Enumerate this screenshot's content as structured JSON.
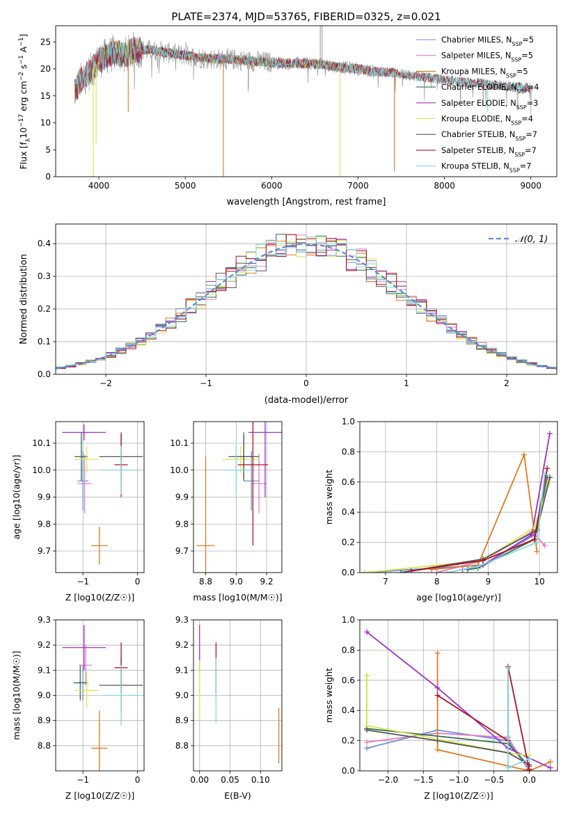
{
  "figure_title": "PLATE=2374, MJD=53765, FIBERID=0325, z=0.021",
  "colors": {
    "chabrier_miles": "#6a8fdc",
    "salpeter_miles": "#e57cc4",
    "kroupa_miles": "#b8860b",
    "chabrier_elodie": "#2f6f4f",
    "salpeter_elodie": "#9b30c8",
    "kroupa_elodie": "#d7e94a",
    "chabrier_stelib": "#555555",
    "salpeter_stelib": "#b01020",
    "kroupa_stelib": "#7fd8e0",
    "orange": "#e07a20",
    "grey_data": "#9a9a9a"
  },
  "chart_data": [
    {
      "type": "line",
      "panel": "spectrum",
      "xlabel": "wavelength [Angstrom, rest frame]",
      "ylabel": "Flux [f_λ 10^-17 erg cm^-2 s^-1 A^-1]",
      "xlim": [
        3500,
        9300
      ],
      "ylim": [
        0,
        28
      ],
      "xticks": [
        "4000",
        "5000",
        "6000",
        "7000",
        "8000",
        "9000"
      ],
      "yticks": [
        "0",
        "5",
        "10",
        "15",
        "20",
        "25"
      ],
      "legend_position": "top-right",
      "legend": [
        {
          "base": "Chabrier MILES, N",
          "sub": "SSP",
          "tail": "=5",
          "color_key": "chabrier_miles"
        },
        {
          "base": "Salpeter MILES, N",
          "sub": "SSP",
          "tail": "=5",
          "color_key": "salpeter_miles"
        },
        {
          "base": "Kroupa MILES, N",
          "sub": "SSP",
          "tail": "=5",
          "color_key": "kroupa_miles"
        },
        {
          "base": "Chabrier ELODIE, N",
          "sub": "SSP",
          "tail": "=4",
          "color_key": "chabrier_elodie"
        },
        {
          "base": "Salpeter ELODIE, N",
          "sub": "SSP",
          "tail": "=3",
          "color_key": "salpeter_elodie"
        },
        {
          "base": "Kroupa ELODIE, N",
          "sub": "SSP",
          "tail": "=4",
          "color_key": "kroupa_elodie"
        },
        {
          "base": "Chabrier STELIB, N",
          "sub": "SSP",
          "tail": "=7",
          "color_key": "chabrier_stelib"
        },
        {
          "base": "Salpeter STELIB, N",
          "sub": "SSP",
          "tail": "=7",
          "color_key": "salpeter_stelib"
        },
        {
          "base": "Kroupa STELIB, N",
          "sub": "SSP",
          "tail": "=7",
          "color_key": "kroupa_stelib"
        }
      ],
      "continuum": [
        [
          3720,
          16
        ],
        [
          3800,
          18
        ],
        [
          3900,
          19.5
        ],
        [
          4000,
          21.5
        ],
        [
          4100,
          22.5
        ],
        [
          4200,
          23
        ],
        [
          4300,
          22.5
        ],
        [
          4400,
          23.5
        ],
        [
          4600,
          23.5
        ],
        [
          4800,
          23
        ],
        [
          5000,
          22.5
        ],
        [
          5200,
          22
        ],
        [
          5400,
          21.8
        ],
        [
          5600,
          21.7
        ],
        [
          5800,
          21.4
        ],
        [
          6000,
          21.2
        ],
        [
          6200,
          21
        ],
        [
          6400,
          21
        ],
        [
          6600,
          20.8
        ],
        [
          6800,
          20.3
        ],
        [
          7000,
          20
        ],
        [
          7200,
          19.5
        ],
        [
          7400,
          19.3
        ],
        [
          7600,
          18.8
        ],
        [
          7800,
          18.4
        ],
        [
          8000,
          18
        ],
        [
          8200,
          17.6
        ],
        [
          8400,
          17.3
        ],
        [
          8600,
          17
        ],
        [
          8800,
          16.6
        ],
        [
          9020,
          16.5
        ]
      ]
    },
    {
      "type": "step",
      "panel": "residuals",
      "xlabel": "(data-model)/error",
      "ylabel": "Normed distribution",
      "xlim": [
        -2.5,
        2.5
      ],
      "ylim": [
        0,
        0.46
      ],
      "xticks": [
        -2,
        -1,
        0,
        1,
        2
      ],
      "xtick_labels": [
        "−2",
        "−1",
        "0",
        "1",
        "2"
      ],
      "yticks": [
        0,
        0.1,
        0.2,
        0.3,
        0.4
      ],
      "ytick_labels": [
        "0.0",
        "0.1",
        "0.2",
        "0.3",
        "0.4"
      ],
      "legend_label": "𝒩(0, 1)",
      "legend_position": "top-right",
      "bin_width": 0.1
    },
    {
      "type": "scatter-errorbar",
      "panel": "age-vs-Z",
      "xlabel": "Z [log10(Z/Z☉)]",
      "ylabel": "age [log10(age/yr)]",
      "xlim": [
        -1.5,
        0.12
      ],
      "ylim": [
        9.62,
        10.18
      ],
      "xticks": [
        -1,
        0
      ],
      "xtick_labels": [
        "−1",
        "0"
      ],
      "yticks": [
        9.7,
        9.8,
        9.9,
        10.0,
        10.1
      ],
      "ytick_labels": [
        "9.7",
        "9.8",
        "9.9",
        "10.0",
        "10.1"
      ],
      "points": [
        {
          "c": "chabrier_miles",
          "x": -1.0,
          "xe": 0.1,
          "y": 9.96,
          "ye": 0.11
        },
        {
          "c": "salpeter_miles",
          "x": -0.97,
          "xe": 0.13,
          "y": 9.95,
          "ye": 0.11
        },
        {
          "c": "orange",
          "x": -0.7,
          "xe": 0.15,
          "y": 9.72,
          "ye": 0.07
        },
        {
          "c": "chabrier_elodie",
          "x": -1.03,
          "xe": 0.12,
          "y": 10.05,
          "ye": 0.09
        },
        {
          "c": "salpeter_elodie",
          "x": -0.98,
          "xe": 0.4,
          "y": 10.14,
          "ye": 0.03
        },
        {
          "c": "kroupa_elodie",
          "x": -0.93,
          "xe": 0.22,
          "y": 10.04,
          "ye": 0.05
        },
        {
          "c": "chabrier_stelib",
          "x": -0.3,
          "xe": 0.4,
          "y": 10.05,
          "ye": 0.08
        },
        {
          "c": "salpeter_stelib",
          "x": -0.3,
          "xe": 0.12,
          "y": 10.02,
          "ye": 0.12
        },
        {
          "c": "kroupa_stelib",
          "x": -0.3,
          "xe": 0.35,
          "y": 10.0,
          "ye": 0.09
        }
      ]
    },
    {
      "type": "scatter-errorbar",
      "panel": "age-vs-mass",
      "xlabel": "mass [log10(M/M☉)]",
      "ylabel": "",
      "xlim": [
        8.72,
        9.3
      ],
      "ylim": [
        9.62,
        10.18
      ],
      "xticks": [
        8.8,
        9.0,
        9.2
      ],
      "xtick_labels": [
        "8.8",
        "9.0",
        "9.2"
      ],
      "yticks": [
        9.7,
        9.8,
        9.9,
        10.0,
        10.1
      ],
      "ytick_labels": [
        "9.7",
        "9.8",
        "9.9",
        "10.0",
        "10.1"
      ],
      "points": [
        {
          "c": "chabrier_miles",
          "x": 9.1,
          "xe": 0.05,
          "y": 9.96,
          "ye": 0.11
        },
        {
          "c": "salpeter_miles",
          "x": 9.15,
          "xe": 0.05,
          "y": 9.95,
          "ye": 0.11
        },
        {
          "c": "orange",
          "x": 8.8,
          "xe": 0.06,
          "y": 9.72,
          "ye": 0.33
        },
        {
          "c": "chabrier_elodie",
          "x": 9.05,
          "xe": 0.1,
          "y": 10.05,
          "ye": 0.09
        },
        {
          "c": "salpeter_elodie",
          "x": 9.19,
          "xe": 0.11,
          "y": 10.14,
          "ye": 0.24
        },
        {
          "c": "kroupa_elodie",
          "x": 9.03,
          "xe": 0.12,
          "y": 10.04,
          "ye": 0.05
        },
        {
          "c": "chabrier_stelib",
          "x": 9.05,
          "xe": 0.06,
          "y": 10.05,
          "ye": 0.08
        },
        {
          "c": "salpeter_stelib",
          "x": 9.11,
          "xe": 0.1,
          "y": 10.02,
          "ye": 0.3
        },
        {
          "c": "kroupa_stelib",
          "x": 9.0,
          "xe": 0.09,
          "y": 10.0,
          "ye": 0.09
        }
      ]
    },
    {
      "type": "line",
      "panel": "mass-weight-vs-age",
      "xlabel": "age [log10(age/yr)]",
      "ylabel": "mass weight",
      "xlim": [
        6.5,
        10.35
      ],
      "ylim": [
        0,
        1.0
      ],
      "xticks": [
        7,
        8,
        9,
        10
      ],
      "xtick_labels": [
        "7",
        "8",
        "9",
        "10"
      ],
      "yticks": [
        0,
        0.2,
        0.4,
        0.6,
        0.8,
        1.0
      ],
      "ytick_labels": [
        "0.0",
        "0.2",
        "0.4",
        "0.6",
        "0.8",
        "1.0"
      ],
      "series": [
        {
          "c": "chabrier_miles",
          "x": [
            6.6,
            8.9,
            9.9,
            10.2
          ],
          "y": [
            0.0,
            0.05,
            0.25,
            0.63
          ]
        },
        {
          "c": "salpeter_miles",
          "x": [
            8.0,
            8.9,
            9.85,
            10.1
          ],
          "y": [
            0.0,
            0.08,
            0.27,
            0.18
          ]
        },
        {
          "c": "orange",
          "x": [
            7.9,
            8.8,
            9.7,
            9.95
          ],
          "y": [
            0.02,
            0.05,
            0.78,
            0.14
          ]
        },
        {
          "c": "chabrier_elodie",
          "x": [
            8.6,
            8.8,
            9.9,
            10.15
          ],
          "y": [
            0.02,
            0.03,
            0.22,
            0.63
          ]
        },
        {
          "c": "salpeter_elodie",
          "x": [
            8.5,
            8.9,
            9.85,
            10.2
          ],
          "y": [
            0.02,
            0.05,
            0.25,
            0.92
          ]
        },
        {
          "c": "kroupa_elodie",
          "x": [
            6.6,
            8.9,
            9.9,
            10.2
          ],
          "y": [
            0.0,
            0.08,
            0.3,
            0.6
          ]
        },
        {
          "c": "chabrier_stelib",
          "x": [
            7.3,
            8.9,
            9.95,
            10.2
          ],
          "y": [
            0.0,
            0.09,
            0.28,
            0.63
          ]
        },
        {
          "c": "salpeter_stelib",
          "x": [
            7.5,
            8.9,
            9.9,
            10.15
          ],
          "y": [
            0.01,
            0.08,
            0.22,
            0.69
          ]
        },
        {
          "c": "kroupa_stelib",
          "x": [
            8.2,
            8.8,
            9.95,
            10.1
          ],
          "y": [
            0.0,
            0.04,
            0.2,
            0.65
          ]
        }
      ]
    },
    {
      "type": "scatter-errorbar",
      "panel": "mass-vs-Z",
      "xlabel": "Z [log10(Z/Z☉)]",
      "ylabel": "mass [log10(M/M☉)]",
      "xlim": [
        -1.5,
        0.12
      ],
      "ylim": [
        8.7,
        9.3
      ],
      "xticks": [
        -1,
        0
      ],
      "xtick_labels": [
        "−1",
        "0"
      ],
      "yticks": [
        8.8,
        8.9,
        9.0,
        9.1,
        9.2,
        9.3
      ],
      "ytick_labels": [
        "8.8",
        "8.9",
        "9.0",
        "9.1",
        "9.2",
        "9.3"
      ],
      "points": [
        {
          "c": "chabrier_miles",
          "x": -1.0,
          "xe": 0.1,
          "y": 9.05,
          "ye": 0.07
        },
        {
          "c": "salpeter_miles",
          "x": -0.95,
          "xe": 0.12,
          "y": 9.12,
          "ye": 0.08
        },
        {
          "c": "orange",
          "x": -0.7,
          "xe": 0.15,
          "y": 8.79,
          "ye": 0.15
        },
        {
          "c": "chabrier_elodie",
          "x": -1.05,
          "xe": 0.12,
          "y": 9.05,
          "ye": 0.07
        },
        {
          "c": "salpeter_elodie",
          "x": -0.98,
          "xe": 0.4,
          "y": 9.19,
          "ye": 0.09
        },
        {
          "c": "kroupa_elodie",
          "x": -0.93,
          "xe": 0.22,
          "y": 9.02,
          "ye": 0.07
        },
        {
          "c": "chabrier_stelib",
          "x": -0.3,
          "xe": 0.4,
          "y": 9.04,
          "ye": 0.11
        },
        {
          "c": "salpeter_stelib",
          "x": -0.3,
          "xe": 0.12,
          "y": 9.11,
          "ye": 0.1
        },
        {
          "c": "kroupa_stelib",
          "x": -0.3,
          "xe": 0.35,
          "y": 9.0,
          "ye": 0.12
        }
      ]
    },
    {
      "type": "scatter-errorbar",
      "panel": "mass-vs-ebv",
      "xlabel": "E(B-V)",
      "ylabel": "",
      "xlim": [
        -0.01,
        0.135
      ],
      "ylim": [
        8.7,
        9.3
      ],
      "xticks": [
        0.0,
        0.05,
        0.1
      ],
      "xtick_labels": [
        "0.00",
        "0.05",
        "0.10"
      ],
      "yticks": [
        8.8,
        8.9,
        9.0,
        9.1,
        9.2,
        9.3
      ],
      "ytick_labels": [
        "8.8",
        "8.9",
        "9.0",
        "9.1",
        "9.2",
        "9.3"
      ],
      "points": [
        {
          "c": "salpeter_elodie",
          "x": 0.0,
          "xe": 0,
          "y": 9.19,
          "ye": 0.09
        },
        {
          "c": "kroupa_elodie",
          "x": 0.0,
          "xe": 0,
          "y": 9.02,
          "ye": 0.12
        },
        {
          "c": "salpeter_stelib",
          "x": 0.027,
          "xe": 0,
          "y": 9.11,
          "ye": 0.1
        },
        {
          "c": "kroupa_stelib",
          "x": 0.027,
          "xe": 0,
          "y": 9.02,
          "ye": 0.13
        },
        {
          "c": "orange",
          "x": 0.13,
          "xe": 0,
          "y": 8.84,
          "ye": 0.11
        }
      ]
    },
    {
      "type": "line",
      "panel": "mass-weight-vs-Z",
      "xlabel": "Z [log10(Z/Z☉)]",
      "ylabel": "mass weight",
      "xlim": [
        -2.4,
        0.4
      ],
      "ylim": [
        0,
        1.0
      ],
      "xticks": [
        -2.0,
        -1.5,
        -1.0,
        -0.5,
        0.0
      ],
      "xtick_labels": [
        "−2.0",
        "−1.5",
        "−1.0",
        "−0.5",
        "0.0"
      ],
      "yticks": [
        0,
        0.2,
        0.4,
        0.6,
        0.8,
        1.0
      ],
      "ytick_labels": [
        "0.0",
        "0.2",
        "0.4",
        "0.6",
        "0.8",
        "1.0"
      ],
      "series": [
        {
          "c": "chabrier_miles",
          "x": [
            -2.3,
            -1.3,
            -0.3,
            0.0
          ],
          "y": [
            0.15,
            0.27,
            0.2,
            0.0
          ]
        },
        {
          "c": "salpeter_miles",
          "x": [
            -2.3,
            -1.3,
            -0.3,
            0.0
          ],
          "y": [
            0.19,
            0.25,
            0.22,
            0.0
          ]
        },
        {
          "c": "orange",
          "x": [
            -1.3,
            -1.3,
            0.0,
            0.3
          ],
          "y": [
            0.78,
            0.14,
            0.0,
            0.06
          ]
        },
        {
          "c": "chabrier_elodie",
          "x": [
            -2.3,
            -2.3,
            -0.3,
            0.0
          ],
          "y": [
            0.63,
            0.28,
            0.18,
            0.03
          ]
        },
        {
          "c": "salpeter_elodie",
          "x": [
            -2.3,
            -1.3,
            -0.3,
            0.3
          ],
          "y": [
            0.92,
            0.55,
            0.15,
            0.02
          ]
        },
        {
          "c": "kroupa_elodie",
          "x": [
            -2.3,
            -2.3,
            -0.3,
            0.0
          ],
          "y": [
            0.63,
            0.3,
            0.12,
            0.1
          ]
        },
        {
          "c": "chabrier_stelib",
          "x": [
            -2.3,
            -1.3,
            -0.3,
            0.0
          ],
          "y": [
            0.27,
            0.2,
            0.12,
            0.04
          ]
        },
        {
          "c": "salpeter_stelib",
          "x": [
            -1.3,
            -0.3,
            -0.3,
            0.0
          ],
          "y": [
            0.5,
            0.2,
            0.69,
            0.01
          ]
        },
        {
          "c": "kroupa_stelib",
          "x": [
            -0.3,
            -0.3,
            -0.3,
            0.0
          ],
          "y": [
            0.68,
            0.23,
            0.02,
            0.08
          ]
        }
      ]
    }
  ]
}
